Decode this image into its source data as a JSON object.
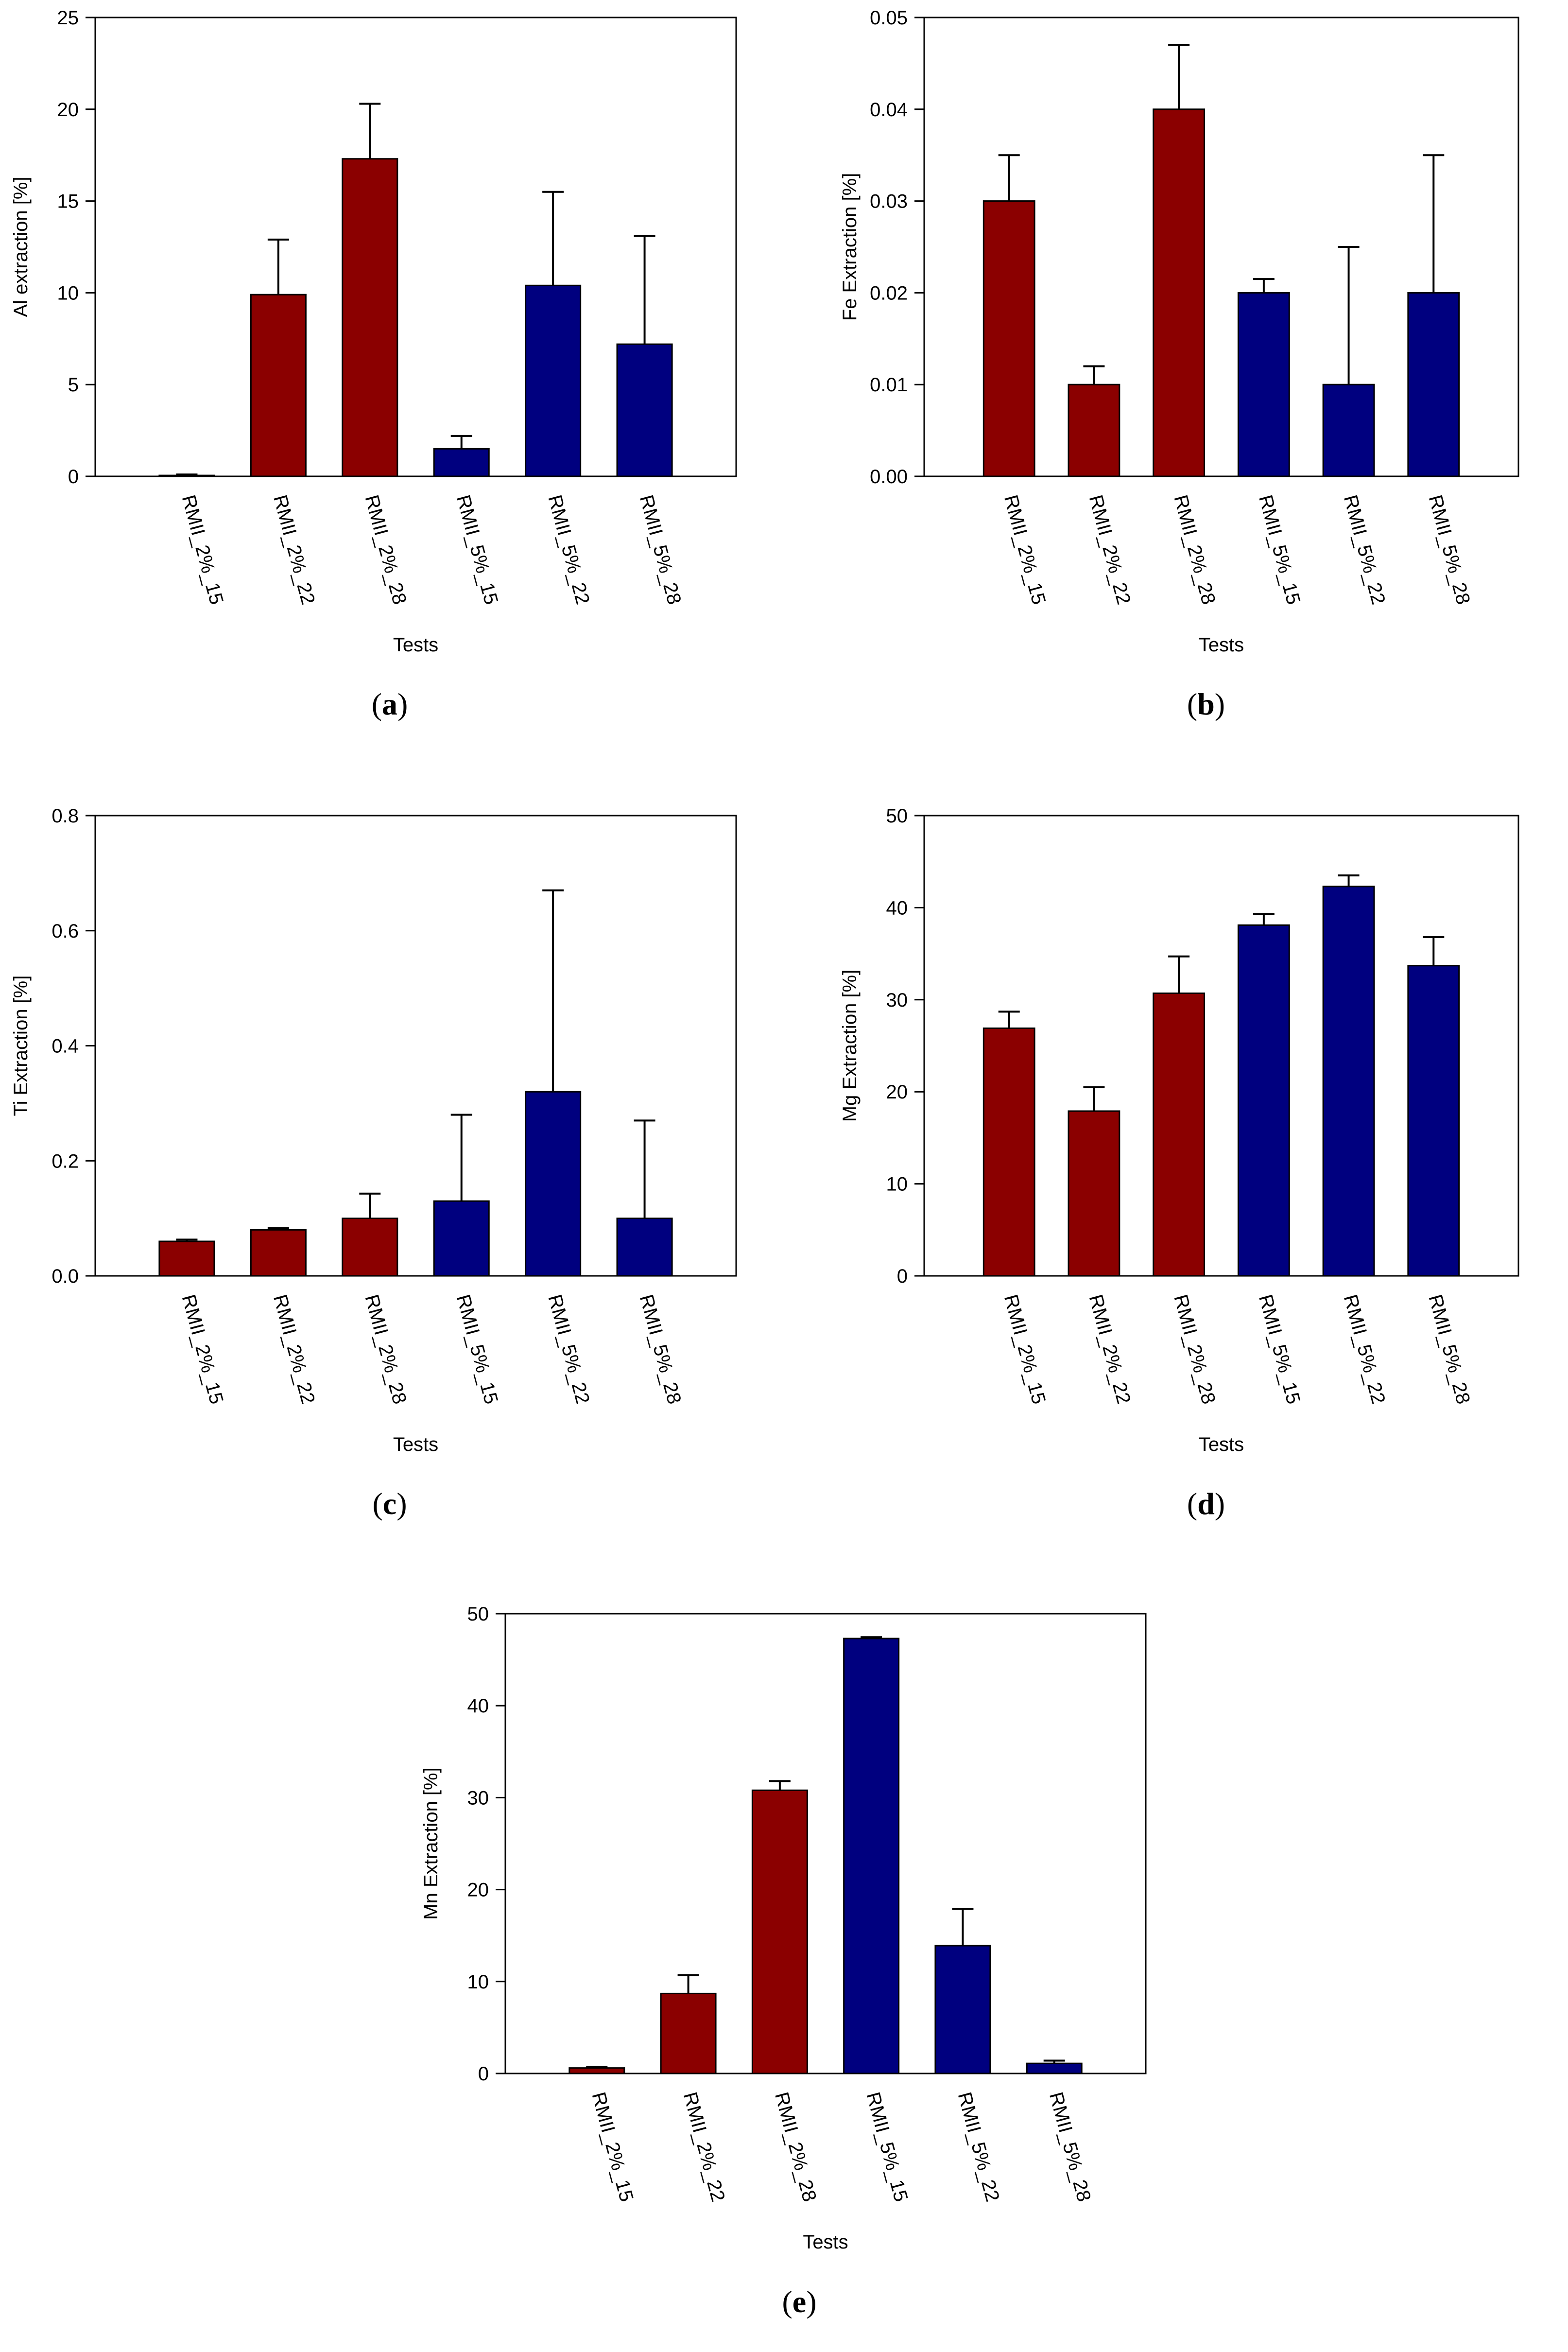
{
  "colors": {
    "group_2pct": "#8b0000",
    "group_5pct": "#00007f",
    "axis": "#000000",
    "background": "#ffffff"
  },
  "chart_data": [
    {
      "panel": "a",
      "type": "bar",
      "caption_letter": "a",
      "ylabel": "Al extraction [%]",
      "xlabel": "Tests",
      "ylim": [
        0,
        25
      ],
      "yticks": [
        0,
        5,
        10,
        15,
        20,
        25
      ],
      "ytick_labels": [
        "0",
        "5",
        "10",
        "15",
        "20",
        "25"
      ],
      "categories": [
        "RMII_2%_15",
        "RMII_2%_22",
        "RMII_2%_28",
        "RMII_5%_15",
        "RMII_5%_22",
        "RMII_5%_28"
      ],
      "values": [
        0.05,
        9.9,
        17.3,
        1.5,
        10.4,
        7.2
      ],
      "errors": [
        0.05,
        3.0,
        3.0,
        0.7,
        5.1,
        5.9
      ],
      "bar_colors": [
        "#8b0000",
        "#8b0000",
        "#8b0000",
        "#00007f",
        "#00007f",
        "#00007f"
      ]
    },
    {
      "panel": "b",
      "type": "bar",
      "caption_letter": "b",
      "ylabel": "Fe Extraction [%]",
      "xlabel": "Tests",
      "ylim": [
        0,
        0.05
      ],
      "yticks": [
        0,
        0.01,
        0.02,
        0.03,
        0.04,
        0.05
      ],
      "ytick_labels": [
        "0.00",
        "0.01",
        "0.02",
        "0.03",
        "0.04",
        "0.05"
      ],
      "categories": [
        "RMII_2%_15",
        "RMII_2%_22",
        "RMII_2%_28",
        "RMII_5%_15",
        "RMII_5%_22",
        "RMII_5%_28"
      ],
      "values": [
        0.03,
        0.01,
        0.04,
        0.02,
        0.01,
        0.02
      ],
      "errors": [
        0.005,
        0.002,
        0.007,
        0.0015,
        0.015,
        0.015
      ],
      "bar_colors": [
        "#8b0000",
        "#8b0000",
        "#8b0000",
        "#00007f",
        "#00007f",
        "#00007f"
      ]
    },
    {
      "panel": "c",
      "type": "bar",
      "caption_letter": "c",
      "ylabel": "Ti Extraction [%]",
      "xlabel": "Tests",
      "ylim": [
        0,
        0.8
      ],
      "yticks": [
        0,
        0.2,
        0.4,
        0.6,
        0.8
      ],
      "ytick_labels": [
        "0.0",
        "0.2",
        "0.4",
        "0.6",
        "0.8"
      ],
      "categories": [
        "RMII_2%_15",
        "RMII_2%_22",
        "RMII_2%_28",
        "RMII_5%_15",
        "RMII_5%_22",
        "RMII_5%_28"
      ],
      "values": [
        0.06,
        0.08,
        0.1,
        0.13,
        0.32,
        0.1
      ],
      "errors": [
        0.003,
        0.003,
        0.043,
        0.15,
        0.35,
        0.17
      ],
      "bar_colors": [
        "#8b0000",
        "#8b0000",
        "#8b0000",
        "#00007f",
        "#00007f",
        "#00007f"
      ]
    },
    {
      "panel": "d",
      "type": "bar",
      "caption_letter": "d",
      "ylabel": "Mg Extraction [%]",
      "xlabel": "Tests",
      "ylim": [
        0,
        50
      ],
      "yticks": [
        0,
        10,
        20,
        30,
        40,
        50
      ],
      "ytick_labels": [
        "0",
        "10",
        "20",
        "30",
        "40",
        "50"
      ],
      "categories": [
        "RMII_2%_15",
        "RMII_2%_22",
        "RMII_2%_28",
        "RMII_5%_15",
        "RMII_5%_22",
        "RMII_5%_28"
      ],
      "values": [
        26.9,
        17.9,
        30.7,
        38.1,
        42.3,
        33.7
      ],
      "errors": [
        1.8,
        2.6,
        4.0,
        1.2,
        1.2,
        3.1
      ],
      "bar_colors": [
        "#8b0000",
        "#8b0000",
        "#8b0000",
        "#00007f",
        "#00007f",
        "#00007f"
      ]
    },
    {
      "panel": "e",
      "type": "bar",
      "caption_letter": "e",
      "ylabel": "Mn Extraction [%]",
      "xlabel": "Tests",
      "ylim": [
        0,
        50
      ],
      "yticks": [
        0,
        10,
        20,
        30,
        40,
        50
      ],
      "ytick_labels": [
        "0",
        "10",
        "20",
        "30",
        "40",
        "50"
      ],
      "categories": [
        "RMII_2%_15",
        "RMII_2%_22",
        "RMII_2%_28",
        "RMII_5%_15",
        "RMII_5%_22",
        "RMII_5%_28"
      ],
      "values": [
        0.6,
        8.7,
        30.8,
        47.3,
        13.9,
        1.1
      ],
      "errors": [
        0.1,
        2.0,
        1.0,
        0.15,
        4.0,
        0.3
      ],
      "bar_colors": [
        "#8b0000",
        "#8b0000",
        "#8b0000",
        "#00007f",
        "#00007f",
        "#00007f"
      ]
    }
  ]
}
